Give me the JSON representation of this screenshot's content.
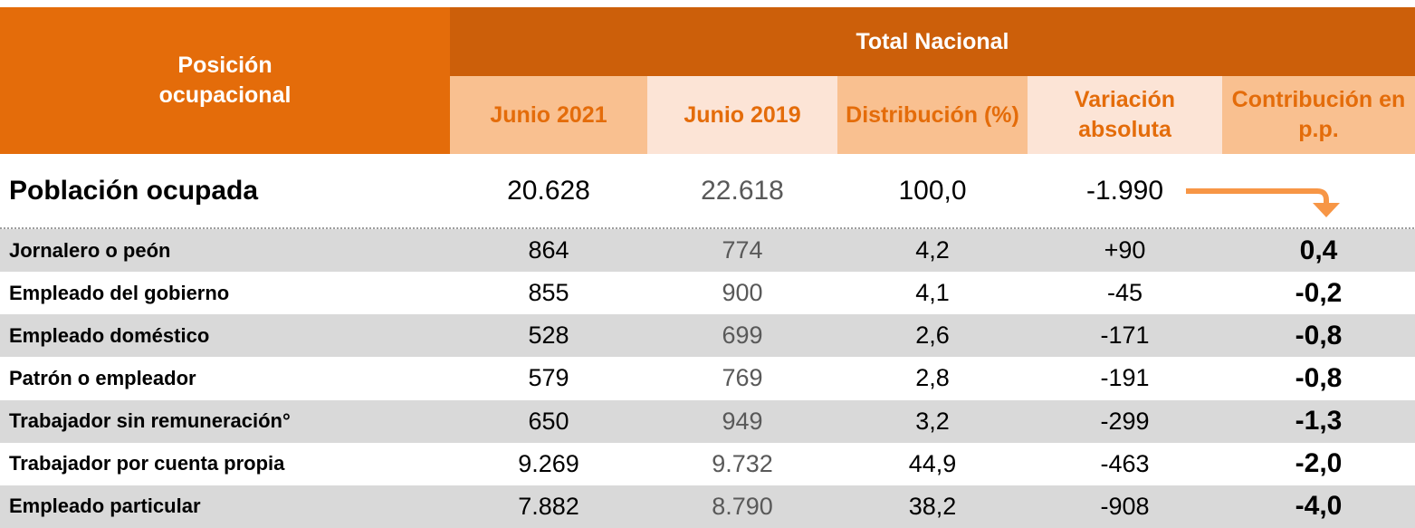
{
  "header": {
    "row_header": "Posición ocupacional",
    "group": "Total Nacional",
    "columns": [
      "Junio 2021",
      "Junio 2019",
      "Distribución (%)",
      "Variación absoluta",
      "Contribución en p.p."
    ]
  },
  "table": {
    "total": {
      "label": "Población ocupada",
      "values": [
        "20.628",
        "22.618",
        "100,0",
        "-1.990"
      ]
    },
    "rows": [
      [
        "Jornalero o peón",
        "864",
        "774",
        "4,2",
        "+90",
        "0,4"
      ],
      [
        "Empleado del gobierno",
        "855",
        "900",
        "4,1",
        "-45",
        "-0,2"
      ],
      [
        "Empleado doméstico",
        "528",
        "699",
        "2,6",
        "-171",
        "-0,8"
      ],
      [
        "Patrón o empleador",
        "579",
        "769",
        "2,8",
        "-191",
        "-0,8"
      ],
      [
        "Trabajador sin remuneración°",
        "650",
        "949",
        "3,2",
        "-299",
        "-1,3"
      ],
      [
        "Trabajador por cuenta propia",
        "9.269",
        "9.732",
        "44,9",
        "-463",
        "-2,0"
      ],
      [
        "Empleado particular",
        "7.882",
        "8.790",
        "38,2",
        "-908",
        "-4,0"
      ]
    ]
  }
}
